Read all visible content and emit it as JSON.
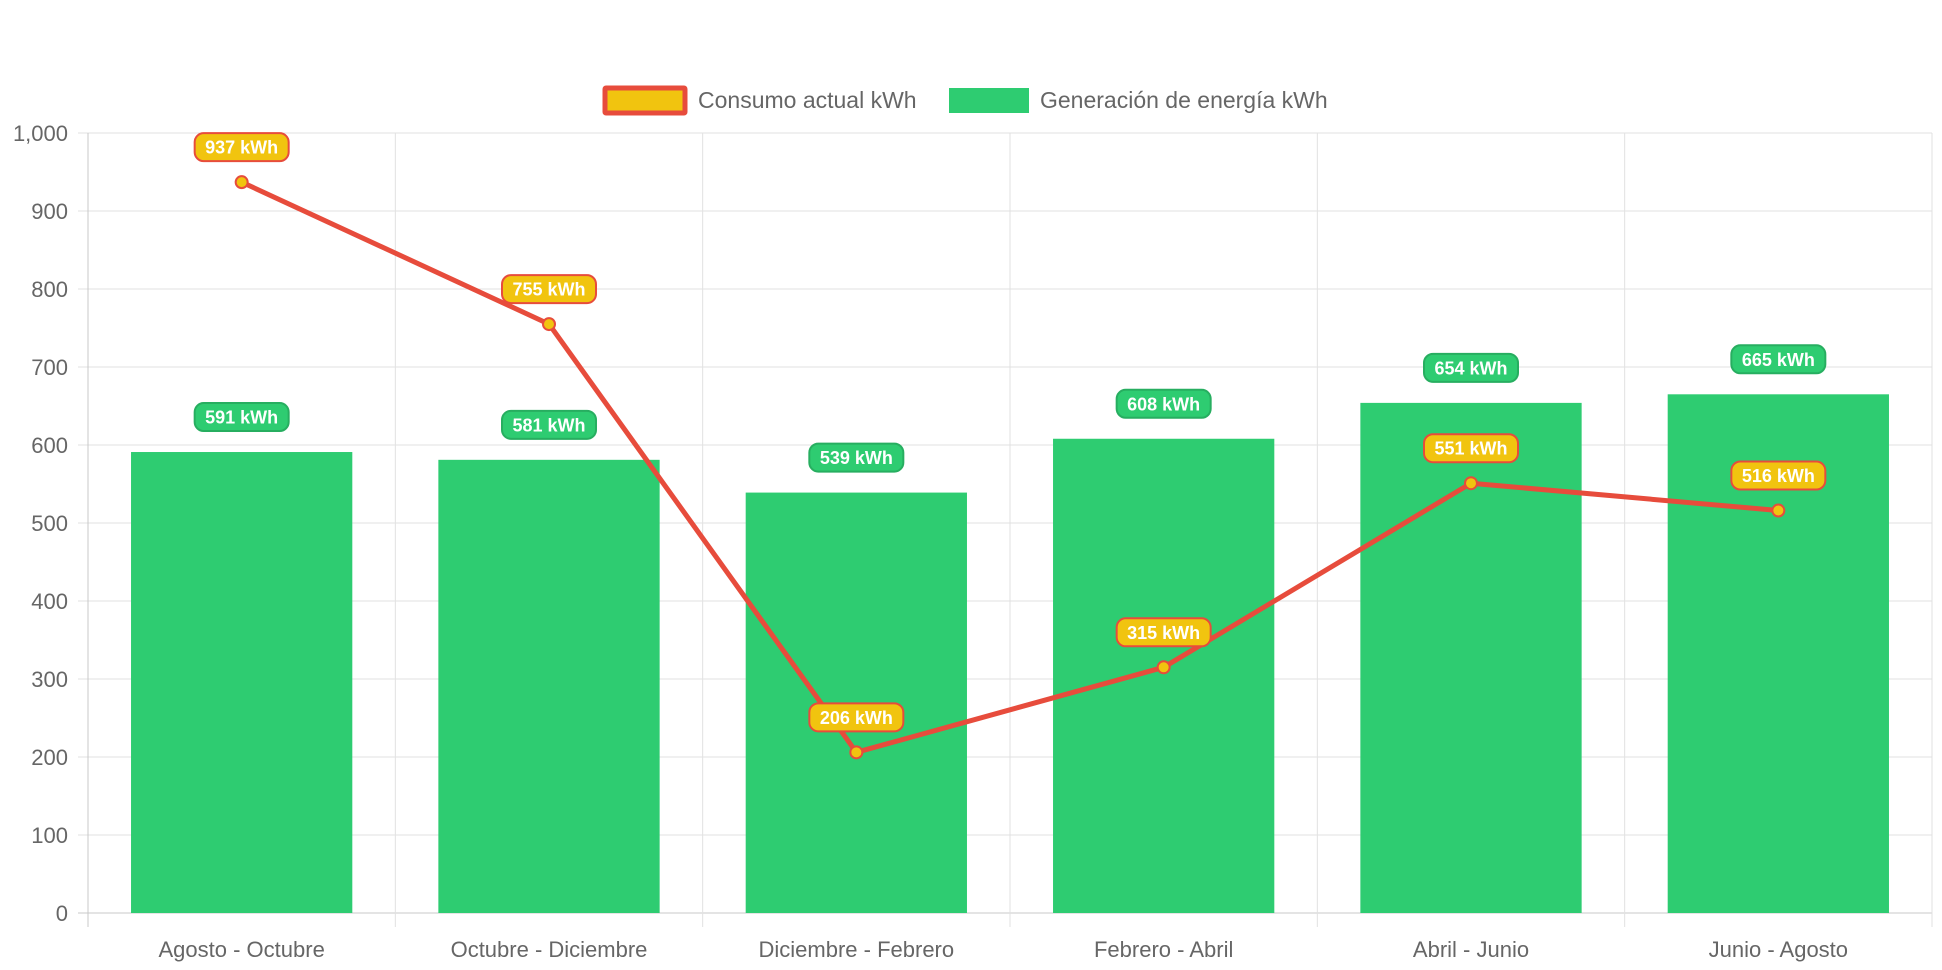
{
  "chart_data": {
    "type": "bar",
    "title": "",
    "xlabel": "",
    "ylabel": "",
    "categories": [
      "Agosto - Octubre",
      "Octubre - Diciembre",
      "Diciembre - Febrero",
      "Febrero - Abril",
      "Abril - Junio",
      "Junio - Agosto"
    ],
    "ylim": [
      0,
      1000
    ],
    "ytick_step": 100,
    "grid": true,
    "legend_position": "top-center",
    "series": [
      {
        "name": "Consumo actual kWh",
        "type": "line",
        "values": [
          937,
          755,
          206,
          315,
          551,
          516
        ],
        "labels": [
          "937 kWh",
          "755 kWh",
          "206 kWh",
          "315 kWh",
          "551 kWh",
          "516 kWh"
        ],
        "line_color": "#e74c3c",
        "fill_color": "#f1c40f"
      },
      {
        "name": "Generación de energía kWh",
        "type": "bar",
        "values": [
          591,
          581,
          539,
          608,
          654,
          665
        ],
        "labels": [
          "591 kWh",
          "581 kWh",
          "539 kWh",
          "608 kWh",
          "654 kWh",
          "665 kWh"
        ],
        "fill_color": "#2ecc71",
        "border_color": "#27ae60"
      }
    ]
  }
}
